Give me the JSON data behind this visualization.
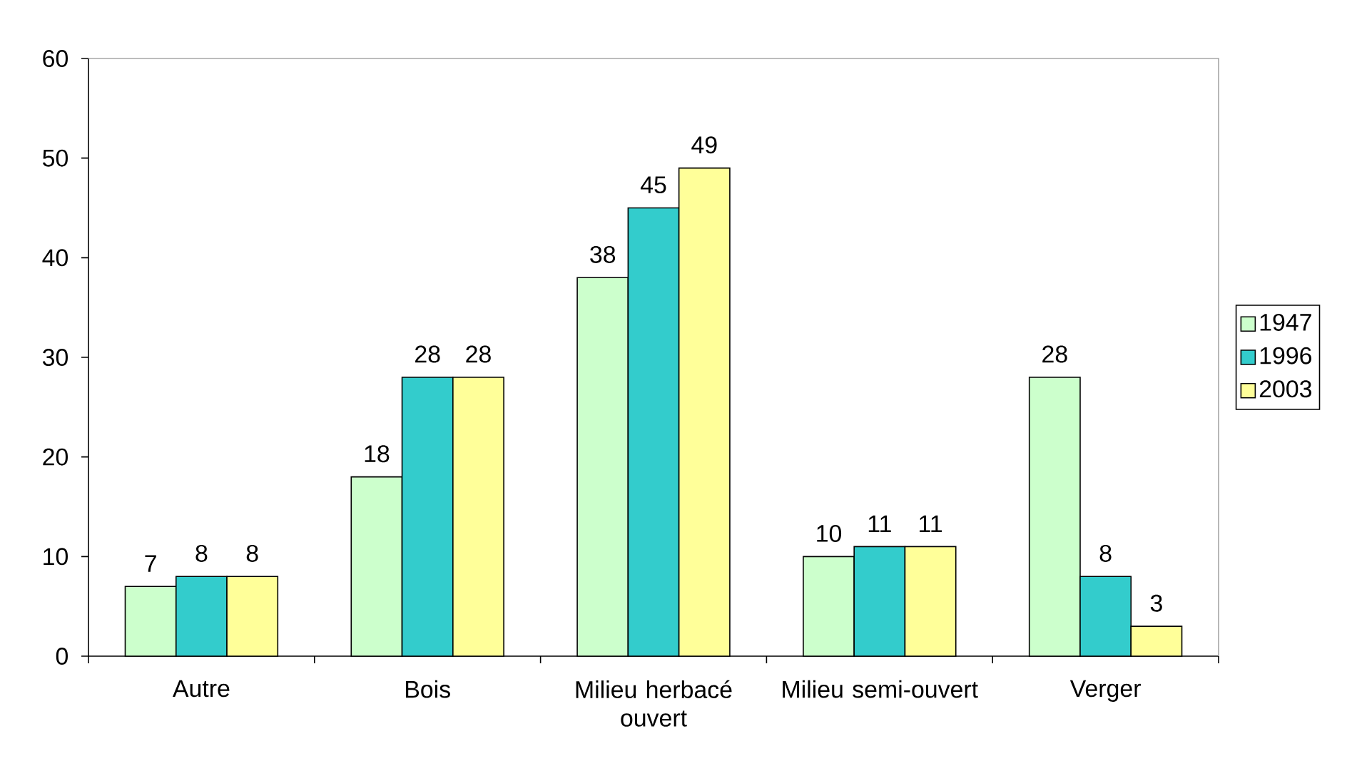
{
  "chart_data": {
    "type": "bar",
    "categories": [
      "Autre",
      "Bois",
      "Milieu herbacé ouvert",
      "Milieu semi-ouvert",
      "Verger"
    ],
    "series": [
      {
        "name": "1947",
        "color": "#ccffcc",
        "values": [
          7,
          18,
          38,
          10,
          28
        ]
      },
      {
        "name": "1996",
        "color": "#33cccc",
        "values": [
          8,
          28,
          45,
          11,
          8
        ]
      },
      {
        "name": "2003",
        "color": "#ffff99",
        "values": [
          8,
          28,
          49,
          11,
          3
        ]
      }
    ],
    "ylim": [
      0,
      60
    ],
    "yticks": [
      0,
      10,
      20,
      30,
      40,
      50,
      60
    ],
    "data_labels": true,
    "legend": "right"
  }
}
